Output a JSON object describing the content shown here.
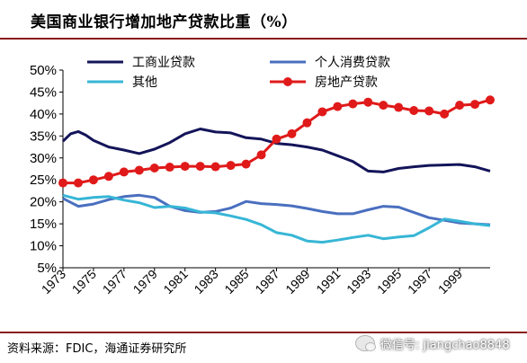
{
  "title": "美国商业银行增加地产贷款比重（%）",
  "source": "资料来源：FDIC，海通证券研究所",
  "watermark": "微信号: jiangchao8848",
  "chart_data": {
    "type": "line",
    "ylim": [
      5,
      50
    ],
    "yticks": [
      "5%",
      "10%",
      "15%",
      "20%",
      "25%",
      "30%",
      "35%",
      "40%",
      "45%",
      "50%"
    ],
    "ytick_values": [
      5,
      10,
      15,
      20,
      25,
      30,
      35,
      40,
      45,
      50
    ],
    "xlim": [
      1973,
      2001
    ],
    "xticks": [
      "1973",
      "1975",
      "1977",
      "1979",
      "1981",
      "1983",
      "1985",
      "1987",
      "1989",
      "1991",
      "1993",
      "1995",
      "1997",
      "1999"
    ],
    "xtick_values": [
      1973,
      1975,
      1977,
      1979,
      1981,
      1983,
      1985,
      1987,
      1989,
      1991,
      1993,
      1995,
      1997,
      1999
    ],
    "grid": false,
    "legend_position": "top",
    "series": [
      {
        "name": "工商业贷款",
        "color": "#14145a",
        "marker": "none",
        "points": [
          [
            1973,
            33.8
          ],
          [
            1973.5,
            35.5
          ],
          [
            1974,
            36.0
          ],
          [
            1974.5,
            35.2
          ],
          [
            1975,
            34.0
          ],
          [
            1976,
            32.5
          ],
          [
            1977,
            31.8
          ],
          [
            1978,
            31.0
          ],
          [
            1979,
            32.0
          ],
          [
            1980,
            33.5
          ],
          [
            1981,
            35.5
          ],
          [
            1982,
            36.6
          ],
          [
            1983,
            35.9
          ],
          [
            1984,
            35.7
          ],
          [
            1985,
            34.6
          ],
          [
            1986,
            34.3
          ],
          [
            1987,
            33.3
          ],
          [
            1988,
            33.0
          ],
          [
            1989,
            32.5
          ],
          [
            1990,
            31.8
          ],
          [
            1991,
            30.5
          ],
          [
            1992,
            29.2
          ],
          [
            1993,
            27.0
          ],
          [
            1994,
            26.8
          ],
          [
            1995,
            27.6
          ],
          [
            1996,
            28.0
          ],
          [
            1997,
            28.3
          ],
          [
            1998,
            28.4
          ],
          [
            1999,
            28.5
          ],
          [
            2000,
            28.0
          ],
          [
            2001,
            27.0
          ]
        ]
      },
      {
        "name": "个人消费贷款",
        "color": "#4a6fbf",
        "marker": "none",
        "points": [
          [
            1973,
            20.8
          ],
          [
            1974,
            19.0
          ],
          [
            1975,
            19.5
          ],
          [
            1976,
            20.5
          ],
          [
            1977,
            21.2
          ],
          [
            1978,
            21.5
          ],
          [
            1979,
            21.0
          ],
          [
            1980,
            19.0
          ],
          [
            1981,
            18.0
          ],
          [
            1982,
            17.6
          ],
          [
            1983,
            17.8
          ],
          [
            1984,
            18.6
          ],
          [
            1985,
            20.1
          ],
          [
            1986,
            19.6
          ],
          [
            1987,
            19.4
          ],
          [
            1988,
            19.1
          ],
          [
            1989,
            18.5
          ],
          [
            1990,
            17.8
          ],
          [
            1991,
            17.3
          ],
          [
            1992,
            17.3
          ],
          [
            1993,
            18.2
          ],
          [
            1994,
            19.0
          ],
          [
            1995,
            18.8
          ],
          [
            1996,
            17.6
          ],
          [
            1997,
            16.4
          ],
          [
            1998,
            15.8
          ],
          [
            1999,
            15.2
          ],
          [
            2000,
            15.0
          ],
          [
            2001,
            14.8
          ]
        ]
      },
      {
        "name": "其他",
        "color": "#37b6d6",
        "marker": "none",
        "points": [
          [
            1973,
            21.5
          ],
          [
            1974,
            20.6
          ],
          [
            1975,
            21.0
          ],
          [
            1976,
            21.2
          ],
          [
            1977,
            20.4
          ],
          [
            1978,
            19.8
          ],
          [
            1979,
            18.7
          ],
          [
            1980,
            19.0
          ],
          [
            1981,
            18.6
          ],
          [
            1982,
            17.7
          ],
          [
            1983,
            17.5
          ],
          [
            1984,
            16.8
          ],
          [
            1985,
            16.0
          ],
          [
            1986,
            14.8
          ],
          [
            1987,
            13.0
          ],
          [
            1988,
            12.4
          ],
          [
            1989,
            11.1
          ],
          [
            1990,
            10.8
          ],
          [
            1991,
            11.3
          ],
          [
            1992,
            11.9
          ],
          [
            1993,
            12.4
          ],
          [
            1994,
            11.6
          ],
          [
            1995,
            12.0
          ],
          [
            1996,
            12.3
          ],
          [
            1997,
            14.1
          ],
          [
            1998,
            16.1
          ],
          [
            1999,
            15.6
          ],
          [
            2000,
            15.0
          ],
          [
            2001,
            14.6
          ]
        ]
      },
      {
        "name": "房地产贷款",
        "color": "#e01a1a",
        "marker": "circle",
        "points": [
          [
            1973,
            24.3
          ],
          [
            1974,
            24.3
          ],
          [
            1975,
            25.0
          ],
          [
            1976,
            25.8
          ],
          [
            1977,
            26.8
          ],
          [
            1978,
            27.2
          ],
          [
            1979,
            27.7
          ],
          [
            1980,
            27.9
          ],
          [
            1981,
            28.1
          ],
          [
            1982,
            28.1
          ],
          [
            1983,
            28.0
          ],
          [
            1984,
            28.3
          ],
          [
            1985,
            28.6
          ],
          [
            1986,
            30.7
          ],
          [
            1987,
            34.3
          ],
          [
            1988,
            35.5
          ],
          [
            1989,
            38.0
          ],
          [
            1990,
            40.5
          ],
          [
            1991,
            41.7
          ],
          [
            1992,
            42.3
          ],
          [
            1993,
            42.7
          ],
          [
            1994,
            42.0
          ],
          [
            1995,
            41.5
          ],
          [
            1996,
            40.8
          ],
          [
            1997,
            40.7
          ],
          [
            1998,
            40.0
          ],
          [
            1999,
            42.0
          ],
          [
            2000,
            42.2
          ],
          [
            2001,
            43.2
          ]
        ]
      }
    ]
  }
}
